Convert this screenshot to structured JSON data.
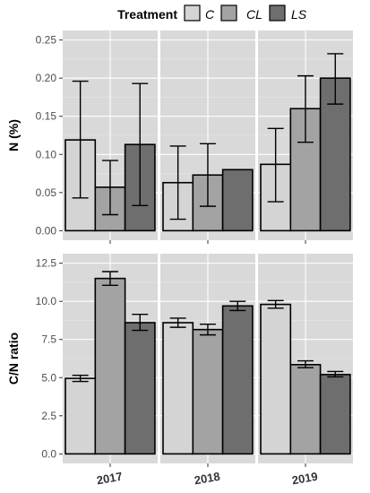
{
  "legend": {
    "title": "Treatment",
    "entries": [
      "C",
      "CL",
      "LS"
    ],
    "placement": "top"
  },
  "colors": {
    "C": "#d4d4d4",
    "CL": "#a3a3a3",
    "LS": "#6e6e6e",
    "panel_bg": "#d9d9d9",
    "grid_major": "#ffffff",
    "grid_minor": "#e8e8e8",
    "bar_edge": "#000000"
  },
  "chart_data": [
    {
      "type": "bar",
      "ylabel": "N (%)",
      "xlabel": "",
      "categories": [
        "2017",
        "2018",
        "2019"
      ],
      "ylim": [
        0,
        0.25
      ],
      "yticks": [
        0.0,
        0.05,
        0.1,
        0.15,
        0.2,
        0.25
      ],
      "ytick_labels": [
        "0.00",
        "0.05",
        "0.10",
        "0.15",
        "0.20",
        "0.25"
      ],
      "grid": true,
      "facets": true,
      "show_xtick_labels": false,
      "series": [
        {
          "name": "C",
          "values": [
            0.119,
            0.063,
            0.087
          ],
          "err_low": [
            0.043,
            0.015,
            0.038
          ],
          "err_high": [
            0.196,
            0.111,
            0.134
          ]
        },
        {
          "name": "CL",
          "values": [
            0.057,
            0.073,
            0.16
          ],
          "err_low": [
            0.021,
            0.032,
            0.116
          ],
          "err_high": [
            0.092,
            0.114,
            0.203
          ]
        },
        {
          "name": "LS",
          "values": [
            0.113,
            0.08,
            0.2
          ],
          "err_low": [
            0.033,
            null,
            0.166
          ],
          "err_high": [
            0.193,
            null,
            0.232
          ]
        }
      ]
    },
    {
      "type": "bar",
      "ylabel": "C/N ratio",
      "xlabel": "",
      "categories": [
        "2017",
        "2018",
        "2019"
      ],
      "ylim": [
        0,
        12.5
      ],
      "yticks": [
        0.0,
        2.5,
        5.0,
        7.5,
        10.0,
        12.5
      ],
      "ytick_labels": [
        "0.0",
        "2.5",
        "5.0",
        "7.5",
        "10.0",
        "12.5"
      ],
      "grid": true,
      "facets": true,
      "show_xtick_labels": true,
      "series": [
        {
          "name": "C",
          "values": [
            4.95,
            8.6,
            9.8
          ],
          "err_low": [
            4.75,
            8.3,
            9.55
          ],
          "err_high": [
            5.15,
            8.9,
            10.05
          ]
        },
        {
          "name": "CL",
          "values": [
            11.5,
            8.15,
            5.85
          ],
          "err_low": [
            11.05,
            7.8,
            5.65
          ],
          "err_high": [
            11.95,
            8.5,
            6.1
          ]
        },
        {
          "name": "LS",
          "values": [
            8.6,
            9.7,
            5.2
          ],
          "err_low": [
            8.1,
            9.4,
            5.05
          ],
          "err_high": [
            9.15,
            10.0,
            5.4
          ]
        }
      ]
    }
  ]
}
